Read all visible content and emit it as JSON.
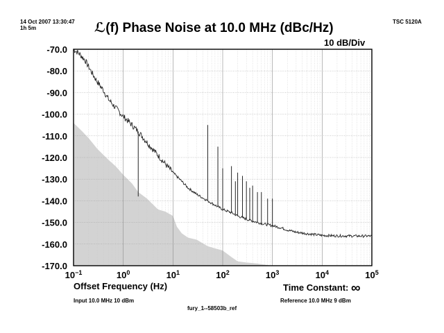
{
  "header": {
    "timestamp": "14 Oct 2007 13:30:47",
    "duration": "1h 5m",
    "instrument": "TSC 5120A"
  },
  "footer": {
    "input": "Input 10.0 MHz 10 dBm",
    "reference": "Reference 10.0 MHz 9 dBm",
    "file": "fury_1--58503b_ref",
    "time_constant_label": "Time Constant:",
    "time_constant_value": "∞"
  },
  "chart_data": {
    "type": "line",
    "title": "ℒ(f) Phase Noise at 10.0 MHz (dBc/Hz)",
    "scale_label": "10 dB/Div",
    "xlabel": "Offset Frequency (Hz)",
    "ylabel": "",
    "xscale": "log",
    "xlim": [
      0.1,
      100000
    ],
    "ylim": [
      -170,
      -70
    ],
    "grid": true,
    "y_ticks": [
      "-70.0",
      "-80.0",
      "-90.0",
      "-100.0",
      "-110.0",
      "-120.0",
      "-130.0",
      "-140.0",
      "-150.0",
      "-160.0",
      "-170.0"
    ],
    "x_ticks": [
      {
        "base": "10",
        "exp": "−1"
      },
      {
        "base": "10",
        "exp": "0"
      },
      {
        "base": "10",
        "exp": "1"
      },
      {
        "base": "10",
        "exp": "2"
      },
      {
        "base": "10",
        "exp": "3"
      },
      {
        "base": "10",
        "exp": "4"
      },
      {
        "base": "10",
        "exp": "5"
      }
    ],
    "colors": {
      "trace": "#222222",
      "floor": "#d3d3d3",
      "grid": "#c8c8c8"
    },
    "series": [
      {
        "kind": "line",
        "x": [
          0.1,
          0.13,
          0.17,
          0.2,
          0.25,
          0.3,
          0.4,
          0.5,
          0.7,
          1,
          1.5,
          2,
          3,
          5,
          7,
          10,
          15,
          20,
          30,
          50,
          70,
          100,
          150,
          200,
          300,
          500,
          700,
          1000,
          1500,
          2000,
          3000,
          5000,
          7000,
          10000,
          20000,
          50000,
          100000
        ],
        "y": [
          -70,
          -72,
          -75,
          -78,
          -82,
          -85,
          -89,
          -93,
          -97,
          -101,
          -105,
          -108,
          -113,
          -119,
          -123,
          -127,
          -131,
          -134,
          -137,
          -140,
          -142,
          -144,
          -145.5,
          -147,
          -148.5,
          -150,
          -150.8,
          -151.5,
          -152.5,
          -153.5,
          -154.5,
          -155.2,
          -155.6,
          -156,
          -156.2,
          -156.3,
          -156.3
        ]
      },
      {
        "kind": "spurs",
        "x": [
          2,
          50,
          60,
          80,
          100,
          150,
          180,
          200,
          250,
          300,
          350,
          400,
          500,
          600,
          800,
          1000
        ],
        "y": [
          -138,
          -105,
          -141,
          -115,
          -125,
          -124,
          -131,
          -127,
          -128.5,
          -131,
          -134,
          -133,
          -136,
          -136,
          -139,
          -139
        ]
      },
      {
        "kind": "area",
        "x": [
          0.1,
          0.15,
          0.2,
          0.3,
          0.5,
          0.7,
          1,
          1.5,
          2,
          3,
          5,
          7,
          10,
          12,
          15,
          20,
          30,
          50,
          70,
          100,
          150,
          200,
          300,
          500,
          700,
          1000
        ],
        "y": [
          -104,
          -108,
          -111,
          -116,
          -121,
          -124,
          -128,
          -132,
          -136,
          -139,
          -144,
          -145,
          -147,
          -152,
          -155,
          -157,
          -158,
          -161,
          -162,
          -163,
          -166,
          -168,
          -168.5,
          -169,
          -169.5,
          -170
        ]
      }
    ]
  }
}
